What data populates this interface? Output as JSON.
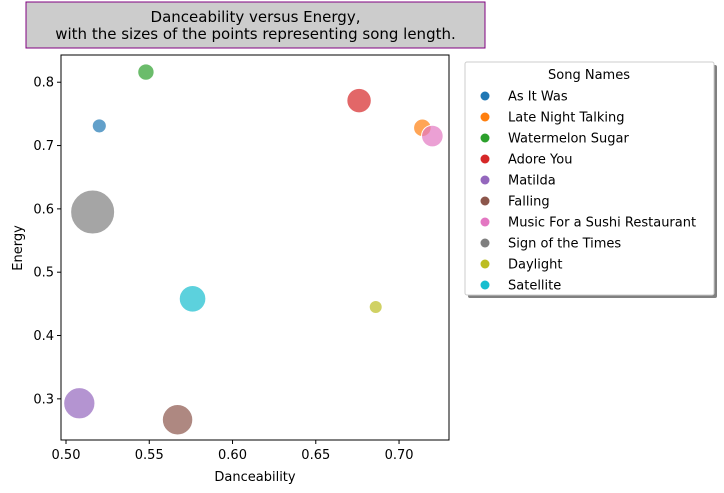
{
  "chart_data": {
    "type": "scatter",
    "title_lines": [
      "Danceability versus Energy,",
      "with the sizes of the points representing song length."
    ],
    "xlabel": "Danceability",
    "ylabel": "Energy",
    "xlim": [
      0.497,
      0.73
    ],
    "ylim": [
      0.235,
      0.843
    ],
    "xticks": [
      0.5,
      0.55,
      0.6,
      0.65,
      0.7
    ],
    "xtick_labels": [
      "0.50",
      "0.55",
      "0.60",
      "0.65",
      "0.70"
    ],
    "yticks": [
      0.3,
      0.4,
      0.5,
      0.6,
      0.7,
      0.8
    ],
    "ytick_labels": [
      "0.3",
      "0.4",
      "0.5",
      "0.6",
      "0.7",
      "0.8"
    ],
    "grid": false,
    "legend_title": "Song Names",
    "legend_position": "outside-right",
    "series": [
      {
        "name": "As It Was",
        "color": "#1f77b4",
        "x": 0.52,
        "y": 0.731,
        "size": 167
      },
      {
        "name": "Late Night Talking",
        "color": "#ff7f0e",
        "x": 0.714,
        "y": 0.728,
        "size": 178
      },
      {
        "name": "Watermelon Sugar",
        "color": "#2ca02c",
        "x": 0.548,
        "y": 0.816,
        "size": 174
      },
      {
        "name": "Adore You",
        "color": "#d62728",
        "x": 0.676,
        "y": 0.771,
        "size": 207
      },
      {
        "name": "Matilda",
        "color": "#9467bd",
        "x": 0.508,
        "y": 0.293,
        "size": 245
      },
      {
        "name": "Falling",
        "color": "#8c564b",
        "x": 0.567,
        "y": 0.267,
        "size": 240
      },
      {
        "name": "Music For a Sushi Restaurant",
        "color": "#e377c2",
        "x": 0.72,
        "y": 0.715,
        "size": 194
      },
      {
        "name": "Sign of the Times",
        "color": "#7f7f7f",
        "x": 0.516,
        "y": 0.595,
        "size": 341
      },
      {
        "name": "Daylight",
        "color": "#bcbd22",
        "x": 0.686,
        "y": 0.445,
        "size": 164
      },
      {
        "name": "Satellite",
        "color": "#17becf",
        "x": 0.576,
        "y": 0.458,
        "size": 218
      }
    ]
  }
}
